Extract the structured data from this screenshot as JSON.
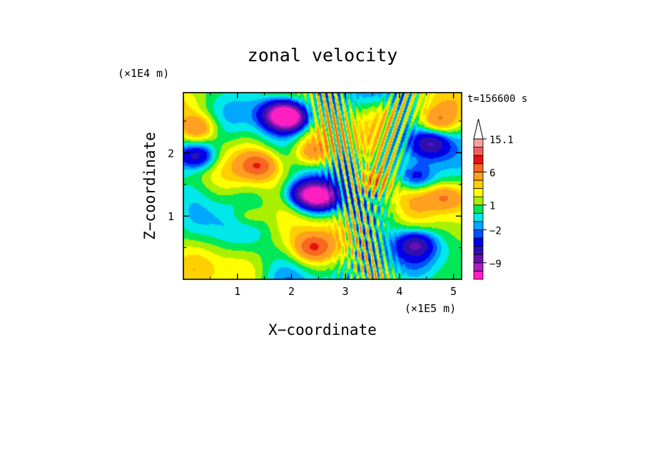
{
  "chart_data": {
    "type": "heatmap",
    "title": "zonal velocity",
    "xlabel": "X−coordinate",
    "ylabel": "Z−coordinate",
    "x_unit": "(×1E5 m)",
    "y_unit": "(×1E4 m)",
    "time_label": "t=156600 s",
    "xlim": [
      0,
      5.15
    ],
    "ylim": [
      0,
      2.95
    ],
    "x_ticks": [
      "1",
      "2",
      "3",
      "4",
      "5"
    ],
    "y_ticks": [
      "1",
      "2"
    ],
    "x_tick_values": [
      1,
      2,
      3,
      4,
      5
    ],
    "y_tick_values": [
      1,
      2
    ],
    "colorbar": {
      "levels": [
        -14,
        -11,
        -9,
        -7,
        -5,
        -3,
        -2,
        -1,
        0,
        1,
        2,
        3,
        4,
        6,
        8,
        10,
        12,
        15.1
      ],
      "labeled_levels": [
        "15.1",
        "6",
        "1",
        "−2",
        "−9"
      ],
      "labeled_values": [
        15.1,
        6,
        1,
        -2,
        -9
      ],
      "colors": [
        "#ff1fc0",
        "#b01ac0",
        "#6a10b0",
        "#2c10b0",
        "#0000e8",
        "#0050ff",
        "#00a8ff",
        "#00e8e8",
        "#00e858",
        "#a8f000",
        "#ffff00",
        "#ffd000",
        "#ffa020",
        "#f86820",
        "#e81010",
        "#f06060",
        "#f8a0a0"
      ],
      "extend": "max"
    },
    "field_features": [
      {
        "x": 0.3,
        "z": 2.4,
        "value": 4
      },
      {
        "x": 1.4,
        "z": 1.8,
        "value": 5
      },
      {
        "x": 1.8,
        "z": 2.6,
        "value": -9
      },
      {
        "x": 2.0,
        "z": 2.55,
        "value": -10
      },
      {
        "x": 0.25,
        "z": 1.95,
        "value": -7
      },
      {
        "x": 2.55,
        "z": 1.3,
        "value": -10
      },
      {
        "x": 2.25,
        "z": 1.35,
        "value": -7
      },
      {
        "x": 2.4,
        "z": 2.0,
        "value": 4
      },
      {
        "x": 3.5,
        "z": 1.55,
        "value": 5
      },
      {
        "x": 4.6,
        "z": 2.15,
        "value": -6
      },
      {
        "x": 4.3,
        "z": 1.6,
        "value": -5
      },
      {
        "x": 4.3,
        "z": 0.55,
        "value": -6
      },
      {
        "x": 1.2,
        "z": 1.0,
        "value": 3
      },
      {
        "x": 2.4,
        "z": 0.5,
        "value": 5
      },
      {
        "x": 3.8,
        "z": 2.6,
        "value": 2
      },
      {
        "x": 4.7,
        "z": 2.5,
        "value": 4
      },
      {
        "x": 4.85,
        "z": 1.3,
        "value": 4
      }
    ]
  }
}
